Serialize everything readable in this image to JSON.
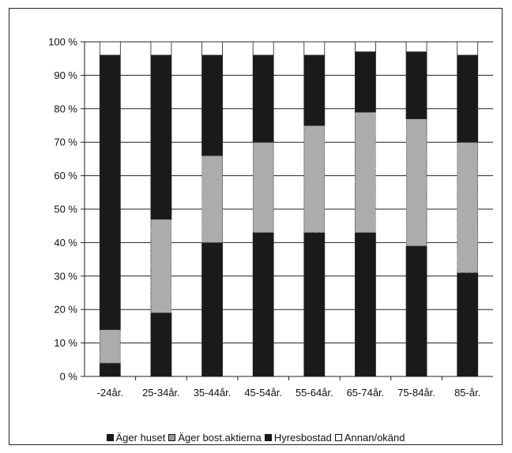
{
  "chart_data": {
    "type": "bar",
    "stacked": true,
    "categories": [
      "-24år.",
      "25-34år.",
      "35-44år.",
      "45-54år.",
      "55-64år.",
      "65-74år.",
      "75-84år.",
      "85-år."
    ],
    "series": [
      {
        "name": "Äger huset",
        "color": "#1a1a1a",
        "values": [
          4,
          19,
          40,
          43,
          43,
          43,
          39,
          31
        ]
      },
      {
        "name": "Äger bost.aktierna",
        "color": "#a9a9a9",
        "values": [
          10,
          28,
          26,
          27,
          32,
          36,
          38,
          39
        ]
      },
      {
        "name": "Hyresbostad",
        "color": "#1a1a1a",
        "values": [
          82,
          49,
          30,
          26,
          21,
          18,
          20,
          26
        ]
      },
      {
        "name": "Annan/okänd",
        "color": "#ffffff",
        "values": [
          4,
          4,
          4,
          4,
          4,
          3,
          3,
          4
        ]
      }
    ],
    "y_ticks": [
      "0 %",
      "10 %",
      "20 %",
      "30 %",
      "40 %",
      "50 %",
      "60 %",
      "70 %",
      "80 %",
      "90 %",
      "100 %"
    ],
    "ylim": [
      0,
      100
    ],
    "grid": true,
    "legend_position": "bottom"
  }
}
